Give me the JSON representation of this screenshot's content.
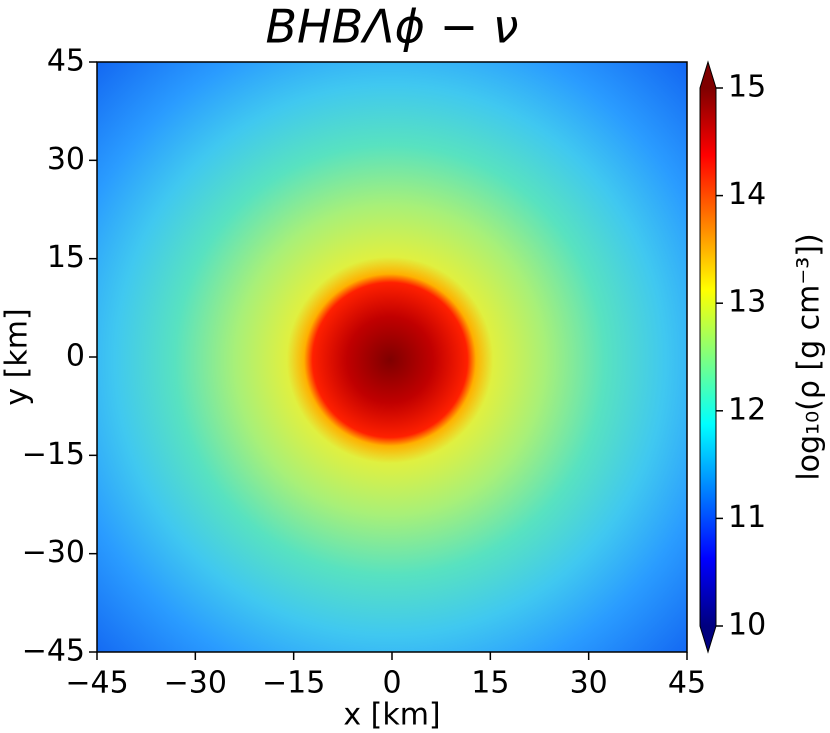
{
  "chart_data": {
    "type": "heatmap",
    "title": "BHBΛϕ − ν",
    "xlabel": "x [km]",
    "ylabel": "y [km]",
    "colorbar_label": "log₁₀(ρ [g cm⁻³])",
    "xlim": [
      -45,
      45
    ],
    "ylim": [
      -45,
      45
    ],
    "xticks": [
      {
        "value": -45,
        "label": "−45"
      },
      {
        "value": -30,
        "label": "−30"
      },
      {
        "value": -15,
        "label": "−15"
      },
      0,
      15,
      30,
      45
    ],
    "yticks": [
      {
        "value": -45,
        "label": "−45"
      },
      {
        "value": -30,
        "label": "−30"
      },
      {
        "value": -15,
        "label": "−15"
      },
      0,
      15,
      30,
      45
    ],
    "colorbar_lim": [
      10,
      15
    ],
    "colorbar_ticks": [
      10,
      11,
      12,
      13,
      14,
      15
    ],
    "colormap": [
      "#00007f",
      "#0000ff",
      "#007fff",
      "#00ffff",
      "#7fff7f",
      "#ffff00",
      "#ff7f00",
      "#ff0000",
      "#7f0000"
    ]
  }
}
